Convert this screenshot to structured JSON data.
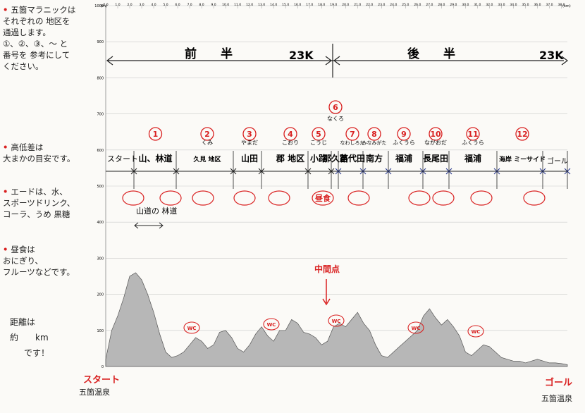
{
  "notes": [
    {
      "lines": [
        "五箇マラニックは",
        "それぞれの 地区を",
        "通過します。",
        "①、②、③、～ と",
        "番号を 参考にして",
        "ください。"
      ]
    },
    {
      "lines": [
        "高低差は",
        "大まかの目安です。"
      ]
    },
    {
      "lines": [
        "エードは、水、",
        "スポーツドリンク、",
        "コーラ、うめ 黒糖",
        ""
      ]
    },
    {
      "lines": [
        "昼食は",
        "おにぎり、",
        "フルーツなどです。"
      ]
    }
  ],
  "distance_note": {
    "line1": "距離は",
    "line2": "約　　km",
    "line3": "です！"
  },
  "axis": {
    "unit_y": "(m)",
    "unit_x": "(km)",
    "y_ticks": [
      1000,
      900,
      800,
      700,
      600,
      500,
      400,
      300,
      200,
      100,
      0
    ],
    "x_ticks": [
      "0.0",
      "1.0",
      "2.0",
      "3.0",
      "4.0",
      "5.0",
      "6.0",
      "7.0",
      "8.0",
      "9.0",
      "10.0",
      "11.0",
      "12.0",
      "13.0",
      "14.0",
      "15.0",
      "16.0",
      "17.0",
      "18.0",
      "19.0",
      "20.0",
      "21.0",
      "22.0",
      "23.0",
      "24.0",
      "25.0",
      "26.0",
      "27.0",
      "28.0",
      "29.0",
      "30.0",
      "31.0",
      "32.0",
      "33.0",
      "34.0",
      "35.0",
      "36.0",
      "37.0",
      "38.0"
    ]
  },
  "halves": {
    "first": "前　　半",
    "first_dist": "23K",
    "second": "後　　半",
    "second_dist": "23K"
  },
  "sections": [
    {
      "num": "①",
      "name": "山、林道"
    },
    {
      "num": "②",
      "name": "久見 地区",
      "upper": "くみ"
    },
    {
      "num": "③",
      "name": "山田",
      "upper": "やまだ"
    },
    {
      "num": "④",
      "name": "郡 地区",
      "upper": "こおり"
    },
    {
      "num": "⑤",
      "name": "小路",
      "upper": "こうじ"
    },
    {
      "num": "⑥",
      "name": "那久路",
      "upper": "なくろ"
    },
    {
      "num": "⑦",
      "name": "苗代田",
      "upper": "なわしろだ"
    },
    {
      "num": "⑧",
      "name": "南方",
      "upper": "みなみがた"
    },
    {
      "num": "⑨",
      "name": "福浦",
      "upper": "ふくうら"
    },
    {
      "num": "⑩",
      "name": "長尾田",
      "upper": "ながおだ"
    },
    {
      "num": "⑪",
      "name": "福浦",
      "upper": "ふくうら"
    },
    {
      "num": "⑫",
      "name": "海岸 ミーサイド"
    }
  ],
  "start_label": "スタート",
  "goal_label": "ゴール",
  "aid": {
    "label": "エード",
    "lunch": "昼食"
  },
  "forest_road": "山道の 林道",
  "midpoint": "中間点",
  "wc": "WC",
  "chart_data": {
    "type": "area",
    "xlabel": "(km)",
    "ylabel": "(m)",
    "xlim": [
      0,
      38.5
    ],
    "ylim": [
      0,
      1000
    ],
    "x": [
      0,
      0.5,
      1,
      1.5,
      2,
      2.5,
      3,
      3.5,
      4,
      4.5,
      5,
      5.5,
      6,
      6.5,
      7,
      7.5,
      8,
      8.5,
      9,
      9.5,
      10,
      10.5,
      11,
      11.5,
      12,
      12.5,
      13,
      13.5,
      14,
      14.5,
      15,
      15.5,
      16,
      16.5,
      17,
      17.5,
      18,
      18.5,
      19,
      19.5,
      20,
      20.5,
      21,
      21.5,
      22,
      22.5,
      23,
      23.5,
      24,
      24.5,
      25,
      25.5,
      26,
      26.5,
      27,
      27.5,
      28,
      28.5,
      29,
      29.5,
      30,
      30.5,
      31,
      31.5,
      32,
      32.5,
      33,
      33.5,
      34,
      34.5,
      35,
      35.5,
      36,
      36.5,
      37,
      37.5,
      38,
      38.5
    ],
    "y": [
      20,
      100,
      140,
      190,
      250,
      260,
      240,
      200,
      150,
      90,
      40,
      25,
      30,
      40,
      60,
      80,
      70,
      50,
      60,
      95,
      100,
      80,
      50,
      40,
      60,
      90,
      110,
      85,
      70,
      100,
      100,
      130,
      120,
      95,
      90,
      80,
      60,
      70,
      110,
      120,
      110,
      130,
      150,
      120,
      100,
      60,
      30,
      25,
      40,
      55,
      70,
      85,
      100,
      140,
      160,
      135,
      115,
      130,
      110,
      85,
      40,
      30,
      45,
      60,
      55,
      40,
      25,
      20,
      15,
      15,
      10,
      15,
      20,
      15,
      10,
      10,
      8,
      5
    ]
  }
}
